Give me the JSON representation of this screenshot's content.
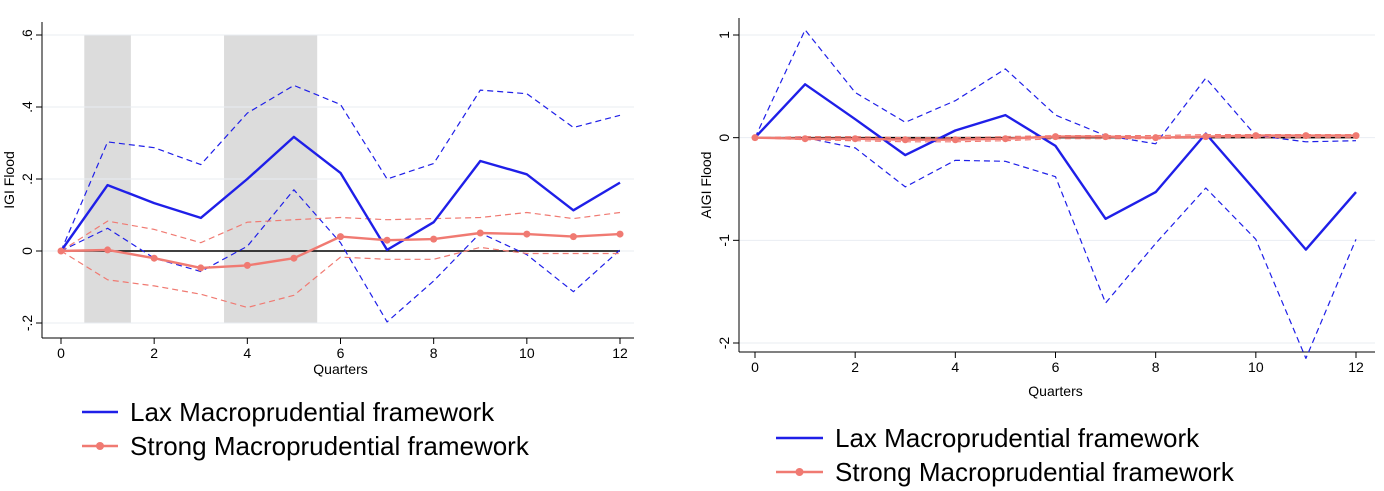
{
  "chart_data": [
    {
      "type": "line",
      "xlabel": "Quarters",
      "ylabel": "IGI Flood",
      "xlim": [
        0,
        12
      ],
      "ylim": [
        -0.23,
        0.6
      ],
      "x_ticks": [
        0,
        2,
        4,
        6,
        8,
        10,
        12
      ],
      "y_ticks": [
        -0.2,
        0,
        0.2,
        0.4,
        0.6
      ],
      "y_tick_labels": [
        "-.2",
        "0",
        ".2",
        ".4",
        ".6"
      ],
      "grid": "horizontal",
      "shaded_ranges": [
        [
          0.5,
          1.5
        ],
        [
          3.5,
          5.5
        ]
      ],
      "reference_line": 0,
      "x": [
        0,
        1,
        2,
        3,
        4,
        5,
        6,
        7,
        8,
        9,
        10,
        11,
        12
      ],
      "series": [
        {
          "name": "Lax Macroprudential framework",
          "style": "solid",
          "color": "#1f1fe8",
          "values": [
            0,
            0.183,
            0.133,
            0.092,
            0.2,
            0.317,
            0.217,
            0.003,
            0.08,
            0.25,
            0.213,
            0.113,
            0.19
          ]
        },
        {
          "style": "dashed",
          "color": "#1f1fe8",
          "values": [
            0,
            0.303,
            0.287,
            0.24,
            0.383,
            0.46,
            0.407,
            0.2,
            0.243,
            0.447,
            0.437,
            0.343,
            0.377
          ]
        },
        {
          "style": "dashed",
          "color": "#1f1fe8",
          "values": [
            0,
            0.063,
            -0.02,
            -0.057,
            0.013,
            0.17,
            0.023,
            -0.197,
            -0.083,
            0.05,
            -0.01,
            -0.113,
            0.003
          ]
        },
        {
          "name": "Strong Macroprudential framework",
          "style": "solid-markers",
          "color": "#f07a72",
          "values": [
            0,
            0.003,
            -0.02,
            -0.047,
            -0.04,
            -0.02,
            0.04,
            0.03,
            0.033,
            0.05,
            0.047,
            0.04,
            0.047
          ]
        },
        {
          "style": "dashed",
          "color": "#f07a72",
          "values": [
            0,
            0.083,
            0.06,
            0.023,
            0.08,
            0.087,
            0.093,
            0.087,
            0.09,
            0.093,
            0.107,
            0.09,
            0.107
          ]
        },
        {
          "style": "dashed",
          "color": "#f07a72",
          "values": [
            0,
            -0.08,
            -0.097,
            -0.12,
            -0.157,
            -0.123,
            -0.017,
            -0.023,
            -0.023,
            0.01,
            -0.007,
            -0.007,
            -0.007
          ]
        }
      ],
      "legend": [
        "Lax Macroprudential framework",
        "Strong Macroprudential framework"
      ],
      "legend_placement": "bottom"
    },
    {
      "type": "line",
      "xlabel": "Quarters",
      "ylabel": "AIGI Flood",
      "xlim": [
        0,
        12
      ],
      "ylim": [
        -2.2,
        1.15
      ],
      "x_ticks": [
        0,
        2,
        4,
        6,
        8,
        10,
        12
      ],
      "y_ticks": [
        -2,
        -1,
        0,
        1
      ],
      "y_tick_labels": [
        "-2",
        "-1",
        "0",
        "1"
      ],
      "grid": "horizontal",
      "shaded_ranges": [],
      "reference_line": 0,
      "x": [
        0,
        1,
        2,
        3,
        4,
        5,
        6,
        7,
        8,
        9,
        10,
        11,
        12
      ],
      "series": [
        {
          "name": "Lax Macroprudential framework",
          "style": "solid",
          "color": "#1f1fe8",
          "values": [
            0,
            0.52,
            0.18,
            -0.17,
            0.07,
            0.22,
            -0.08,
            -0.79,
            -0.53,
            0.04,
            -0.52,
            -1.09,
            -0.53
          ]
        },
        {
          "style": "dashed",
          "color": "#1f1fe8",
          "values": [
            0,
            1.05,
            0.44,
            0.15,
            0.36,
            0.67,
            0.22,
            0.02,
            -0.06,
            0.58,
            0.02,
            -0.04,
            -0.03
          ]
        },
        {
          "style": "dashed",
          "color": "#1f1fe8",
          "values": [
            0,
            0.0,
            -0.1,
            -0.48,
            -0.22,
            -0.23,
            -0.38,
            -1.61,
            -1.03,
            -0.49,
            -0.99,
            -2.15,
            -0.99
          ]
        },
        {
          "name": "Strong Macroprudential framework",
          "style": "solid-markers",
          "color": "#f07a72",
          "values": [
            0,
            -0.01,
            -0.01,
            -0.02,
            -0.02,
            -0.01,
            0.01,
            0.01,
            0.0,
            0.01,
            0.02,
            0.02,
            0.02
          ]
        },
        {
          "style": "dashed",
          "color": "#f07a72",
          "values": [
            0,
            0.01,
            0.01,
            0.0,
            0.0,
            0.01,
            0.02,
            0.02,
            0.02,
            0.03,
            0.03,
            0.03,
            0.03
          ]
        },
        {
          "style": "dashed",
          "color": "#f07a72",
          "values": [
            0,
            -0.02,
            -0.03,
            -0.04,
            -0.04,
            -0.03,
            -0.01,
            -0.01,
            -0.01,
            0.0,
            0.0,
            0.0,
            0.0
          ]
        }
      ],
      "legend": [
        "Lax Macroprudential framework",
        "Strong Macroprudential framework"
      ],
      "legend_placement": "bottom"
    }
  ]
}
